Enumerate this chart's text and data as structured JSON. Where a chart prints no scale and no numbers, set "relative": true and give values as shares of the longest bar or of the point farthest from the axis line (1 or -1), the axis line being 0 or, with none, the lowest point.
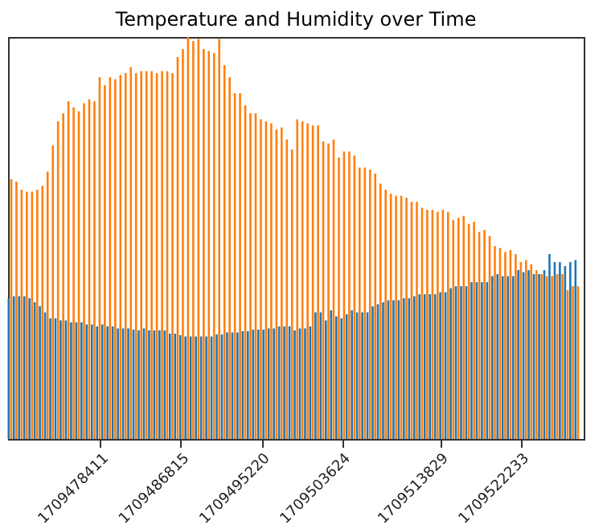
{
  "chart_data": {
    "type": "bar",
    "title": "Temperature and Humidity over Time",
    "relative": true,
    "x": [
      1709469000,
      1709469542,
      1709470084,
      1709470626,
      1709471168,
      1709471710,
      1709472252,
      1709472794,
      1709473336,
      1709473878,
      1709474420,
      1709474962,
      1709475504,
      1709476046,
      1709476588,
      1709477130,
      1709477672,
      1709478214,
      1709478756,
      1709479298,
      1709479840,
      1709480382,
      1709480924,
      1709481466,
      1709482008,
      1709482550,
      1709483092,
      1709483634,
      1709484176,
      1709484718,
      1709485260,
      1709485802,
      1709486344,
      1709486886,
      1709487428,
      1709487970,
      1709488512,
      1709489054,
      1709489596,
      1709490138,
      1709490680,
      1709491222,
      1709491764,
      1709492306,
      1709492848,
      1709493390,
      1709493932,
      1709494474,
      1709495016,
      1709495558,
      1709496100,
      1709496642,
      1709497184,
      1709497726,
      1709498268,
      1709498810,
      1709499352,
      1709499894,
      1709500436,
      1709500978,
      1709501520,
      1709502062,
      1709502604,
      1709503146,
      1709503688,
      1709504230,
      1709504772,
      1709505314,
      1709505856,
      1709506398,
      1709506940,
      1709507482,
      1709508024,
      1709508566,
      1709509108,
      1709509650,
      1709510192,
      1709510734,
      1709511276,
      1709511818,
      1709512360,
      1709512902,
      1709513444,
      1709513986,
      1709514528,
      1709515070,
      1709515612,
      1709516154,
      1709516696,
      1709517238,
      1709517780,
      1709518322,
      1709518864,
      1709519406,
      1709519948,
      1709520490,
      1709521032,
      1709521574,
      1709522116,
      1709522658,
      1709523200,
      1709523742,
      1709524284,
      1709524826,
      1709525368,
      1709525910,
      1709526452,
      1709526994,
      1709527536,
      1709528078
    ],
    "series": [
      {
        "color": "#1f77b4",
        "values": [
          0.35,
          0.355,
          0.355,
          0.355,
          0.35,
          0.34,
          0.33,
          0.315,
          0.3,
          0.3,
          0.295,
          0.295,
          0.29,
          0.29,
          0.29,
          0.285,
          0.285,
          0.28,
          0.285,
          0.28,
          0.28,
          0.275,
          0.275,
          0.275,
          0.272,
          0.27,
          0.275,
          0.27,
          0.27,
          0.27,
          0.27,
          0.262,
          0.262,
          0.258,
          0.255,
          0.255,
          0.255,
          0.255,
          0.255,
          0.255,
          0.26,
          0.26,
          0.265,
          0.265,
          0.265,
          0.268,
          0.268,
          0.272,
          0.272,
          0.272,
          0.275,
          0.275,
          0.28,
          0.28,
          0.28,
          0.27,
          0.275,
          0.275,
          0.28,
          0.315,
          0.315,
          0.295,
          0.32,
          0.305,
          0.3,
          0.31,
          0.32,
          0.315,
          0.315,
          0.315,
          0.33,
          0.335,
          0.34,
          0.345,
          0.345,
          0.345,
          0.35,
          0.35,
          0.355,
          0.36,
          0.36,
          0.36,
          0.36,
          0.365,
          0.365,
          0.375,
          0.38,
          0.38,
          0.38,
          0.39,
          0.39,
          0.39,
          0.39,
          0.405,
          0.41,
          0.405,
          0.405,
          0.405,
          0.42,
          0.415,
          0.42,
          0.41,
          0.41,
          0.42,
          0.46,
          0.44,
          0.44,
          0.43,
          0.44,
          0.445
        ]
      },
      {
        "color": "#ff7f0e",
        "values": [
          0.646,
          0.64,
          0.62,
          0.615,
          0.615,
          0.62,
          0.63,
          0.665,
          0.73,
          0.79,
          0.81,
          0.84,
          0.825,
          0.815,
          0.835,
          0.845,
          0.84,
          0.9,
          0.88,
          0.9,
          0.895,
          0.905,
          0.91,
          0.925,
          0.91,
          0.915,
          0.915,
          0.915,
          0.91,
          0.915,
          0.915,
          0.91,
          0.95,
          0.97,
          1.0,
          0.99,
          0.995,
          0.97,
          0.965,
          0.96,
          0.995,
          0.93,
          0.9,
          0.86,
          0.86,
          0.83,
          0.81,
          0.81,
          0.795,
          0.79,
          0.785,
          0.77,
          0.775,
          0.745,
          0.72,
          0.795,
          0.79,
          0.785,
          0.78,
          0.78,
          0.74,
          0.735,
          0.745,
          0.7,
          0.715,
          0.715,
          0.705,
          0.675,
          0.675,
          0.67,
          0.66,
          0.635,
          0.62,
          0.61,
          0.605,
          0.605,
          0.6,
          0.59,
          0.59,
          0.575,
          0.57,
          0.57,
          0.565,
          0.57,
          0.565,
          0.545,
          0.55,
          0.555,
          0.535,
          0.54,
          0.515,
          0.52,
          0.505,
          0.48,
          0.475,
          0.465,
          0.47,
          0.46,
          0.44,
          0.445,
          0.435,
          0.42,
          0.41,
          0.405,
          0.405,
          0.41,
          0.41,
          0.37,
          0.38,
          0.38
        ]
      }
    ],
    "xlim": [
      1709468800,
      1709528800
    ],
    "xticks": [
      1709478411,
      1709486815,
      1709495220,
      1709503624,
      1709513829,
      1709522233
    ],
    "grid": false
  }
}
